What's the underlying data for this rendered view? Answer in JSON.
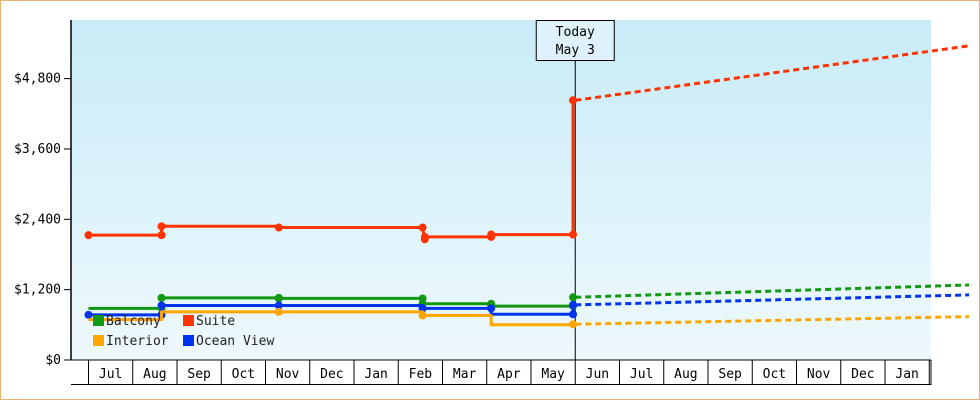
{
  "chart_data": {
    "type": "line",
    "title": "",
    "xlabel": "",
    "ylabel": "",
    "ylim": [
      0,
      5800
    ],
    "y_ticks": [
      {
        "value": 0,
        "label": "$0"
      },
      {
        "value": 1200,
        "label": "$1,200"
      },
      {
        "value": 2400,
        "label": "$2,400"
      },
      {
        "value": 3600,
        "label": "$3,600"
      },
      {
        "value": 4800,
        "label": "$4,800"
      }
    ],
    "month_labels": [
      "",
      "Jul",
      "Aug",
      "Sep",
      "Oct",
      "Nov",
      "Dec",
      "Jan",
      "Feb",
      "Mar",
      "Apr",
      "May",
      "Jun",
      "Jul",
      "Aug",
      "Sep",
      "Oct",
      "Nov",
      "Dec",
      "Jan"
    ],
    "today": {
      "line1": "Today",
      "line2": "May 3",
      "month_index": 11.0
    },
    "legend": {
      "placement": "bottom-left"
    },
    "series": [
      {
        "name": "Suite",
        "color": "#ff3300",
        "history": [
          [
            0,
            2130
          ],
          [
            1.65,
            2130
          ],
          [
            1.65,
            2280
          ],
          [
            4.3,
            2280
          ],
          [
            4.3,
            2260
          ],
          [
            7.55,
            2260
          ],
          [
            7.55,
            2250
          ],
          [
            7.6,
            2060
          ],
          [
            7.6,
            2100
          ],
          [
            9.1,
            2100
          ],
          [
            9.1,
            2140
          ],
          [
            10.95,
            2140
          ],
          [
            10.95,
            4430
          ]
        ],
        "history_markers": [
          0,
          1,
          2,
          4,
          5,
          7,
          8,
          9,
          10,
          11,
          12
        ],
        "forecast": [
          [
            11.0,
            4430
          ],
          [
            19.9,
            5360
          ]
        ]
      },
      {
        "name": "Balcony",
        "color": "#119911",
        "history": [
          [
            0,
            880
          ],
          [
            1.65,
            880
          ],
          [
            1.65,
            1060
          ],
          [
            4.3,
            1060
          ],
          [
            4.3,
            1050
          ],
          [
            7.55,
            1050
          ],
          [
            7.55,
            960
          ],
          [
            9.1,
            960
          ],
          [
            9.1,
            920
          ],
          [
            10.95,
            920
          ],
          [
            10.95,
            1070
          ]
        ],
        "history_markers": [
          1,
          2,
          3,
          4,
          5,
          6,
          7,
          8,
          9,
          10
        ],
        "forecast": [
          [
            11.0,
            1070
          ],
          [
            19.9,
            1280
          ]
        ]
      },
      {
        "name": "Ocean View",
        "color": "#0033ee",
        "history": [
          [
            0,
            770
          ],
          [
            1.65,
            770
          ],
          [
            1.65,
            930
          ],
          [
            4.3,
            930
          ],
          [
            7.55,
            930
          ],
          [
            7.55,
            880
          ],
          [
            9.1,
            880
          ],
          [
            9.1,
            780
          ],
          [
            10.95,
            780
          ],
          [
            10.95,
            940
          ]
        ],
        "history_markers": [
          0,
          1,
          2,
          3,
          5,
          6,
          8,
          9
        ],
        "forecast": [
          [
            11.0,
            940
          ],
          [
            19.9,
            1110
          ]
        ]
      },
      {
        "name": "Interior",
        "color": "#ffa500",
        "history": [
          [
            0,
            690
          ],
          [
            1.65,
            690
          ],
          [
            1.65,
            820
          ],
          [
            4.3,
            820
          ],
          [
            7.55,
            820
          ],
          [
            7.55,
            760
          ],
          [
            9.1,
            760
          ],
          [
            9.1,
            600
          ],
          [
            10.95,
            600
          ],
          [
            10.95,
            610
          ]
        ],
        "history_markers": [
          3,
          5,
          9
        ],
        "forecast": [
          [
            11.0,
            610
          ],
          [
            19.9,
            740
          ]
        ]
      }
    ]
  }
}
